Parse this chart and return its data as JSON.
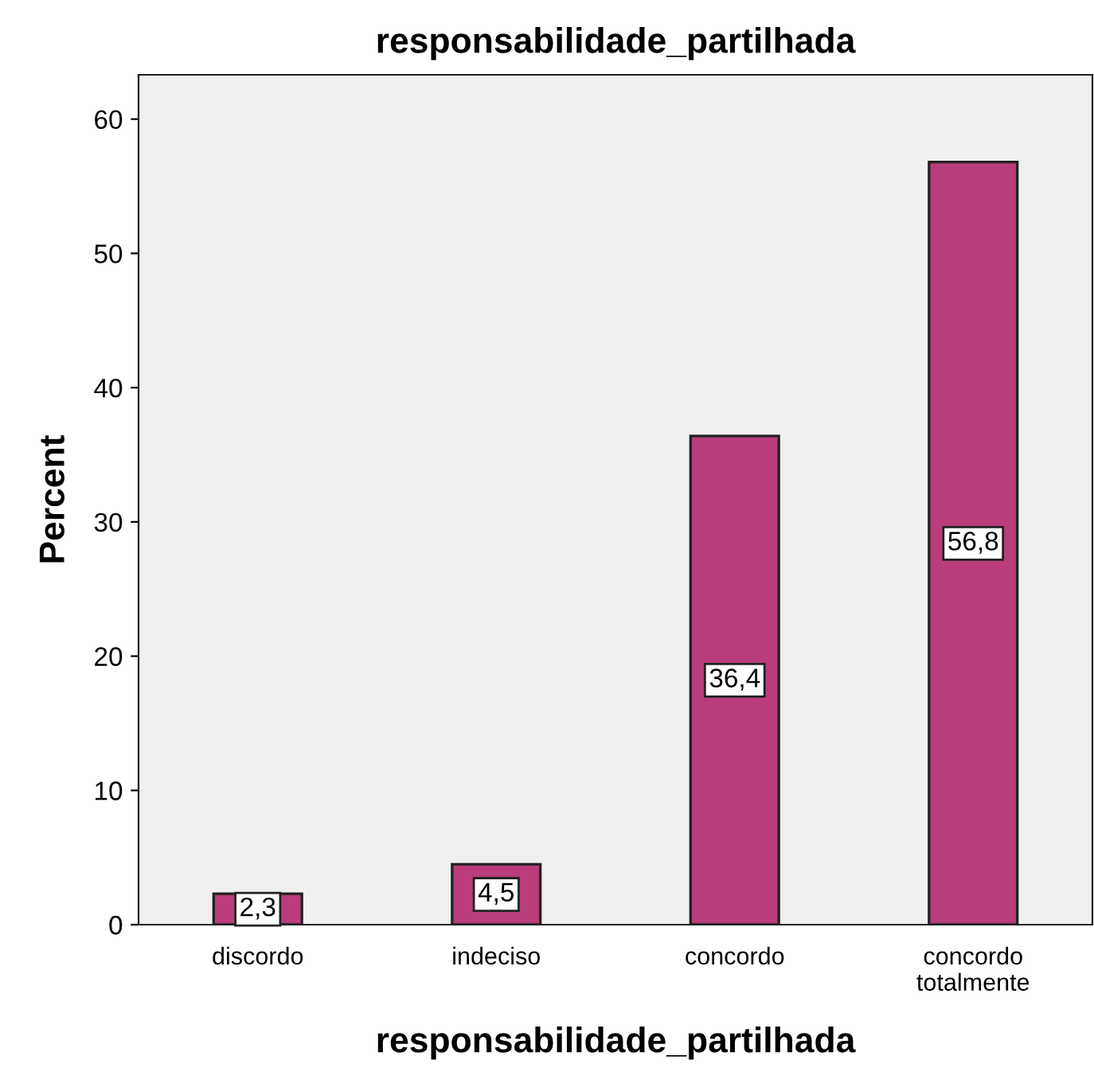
{
  "chart_data": {
    "type": "bar",
    "title": "responsabilidade_partilhada",
    "xlabel": "responsabilidade_partilhada",
    "ylabel": "Percent",
    "categories": [
      "discordo",
      "indeciso",
      "concordo",
      "concordo\ntotalmente"
    ],
    "values": [
      2.3,
      4.5,
      36.4,
      56.8
    ],
    "value_labels": [
      "2,3",
      "4,5",
      "36,4",
      "56,8"
    ],
    "color": "#b93d7a",
    "ylim": [
      0,
      63.3
    ],
    "yticks": [
      0,
      10,
      20,
      30,
      40,
      50,
      60
    ],
    "grid": false,
    "legend": false
  }
}
